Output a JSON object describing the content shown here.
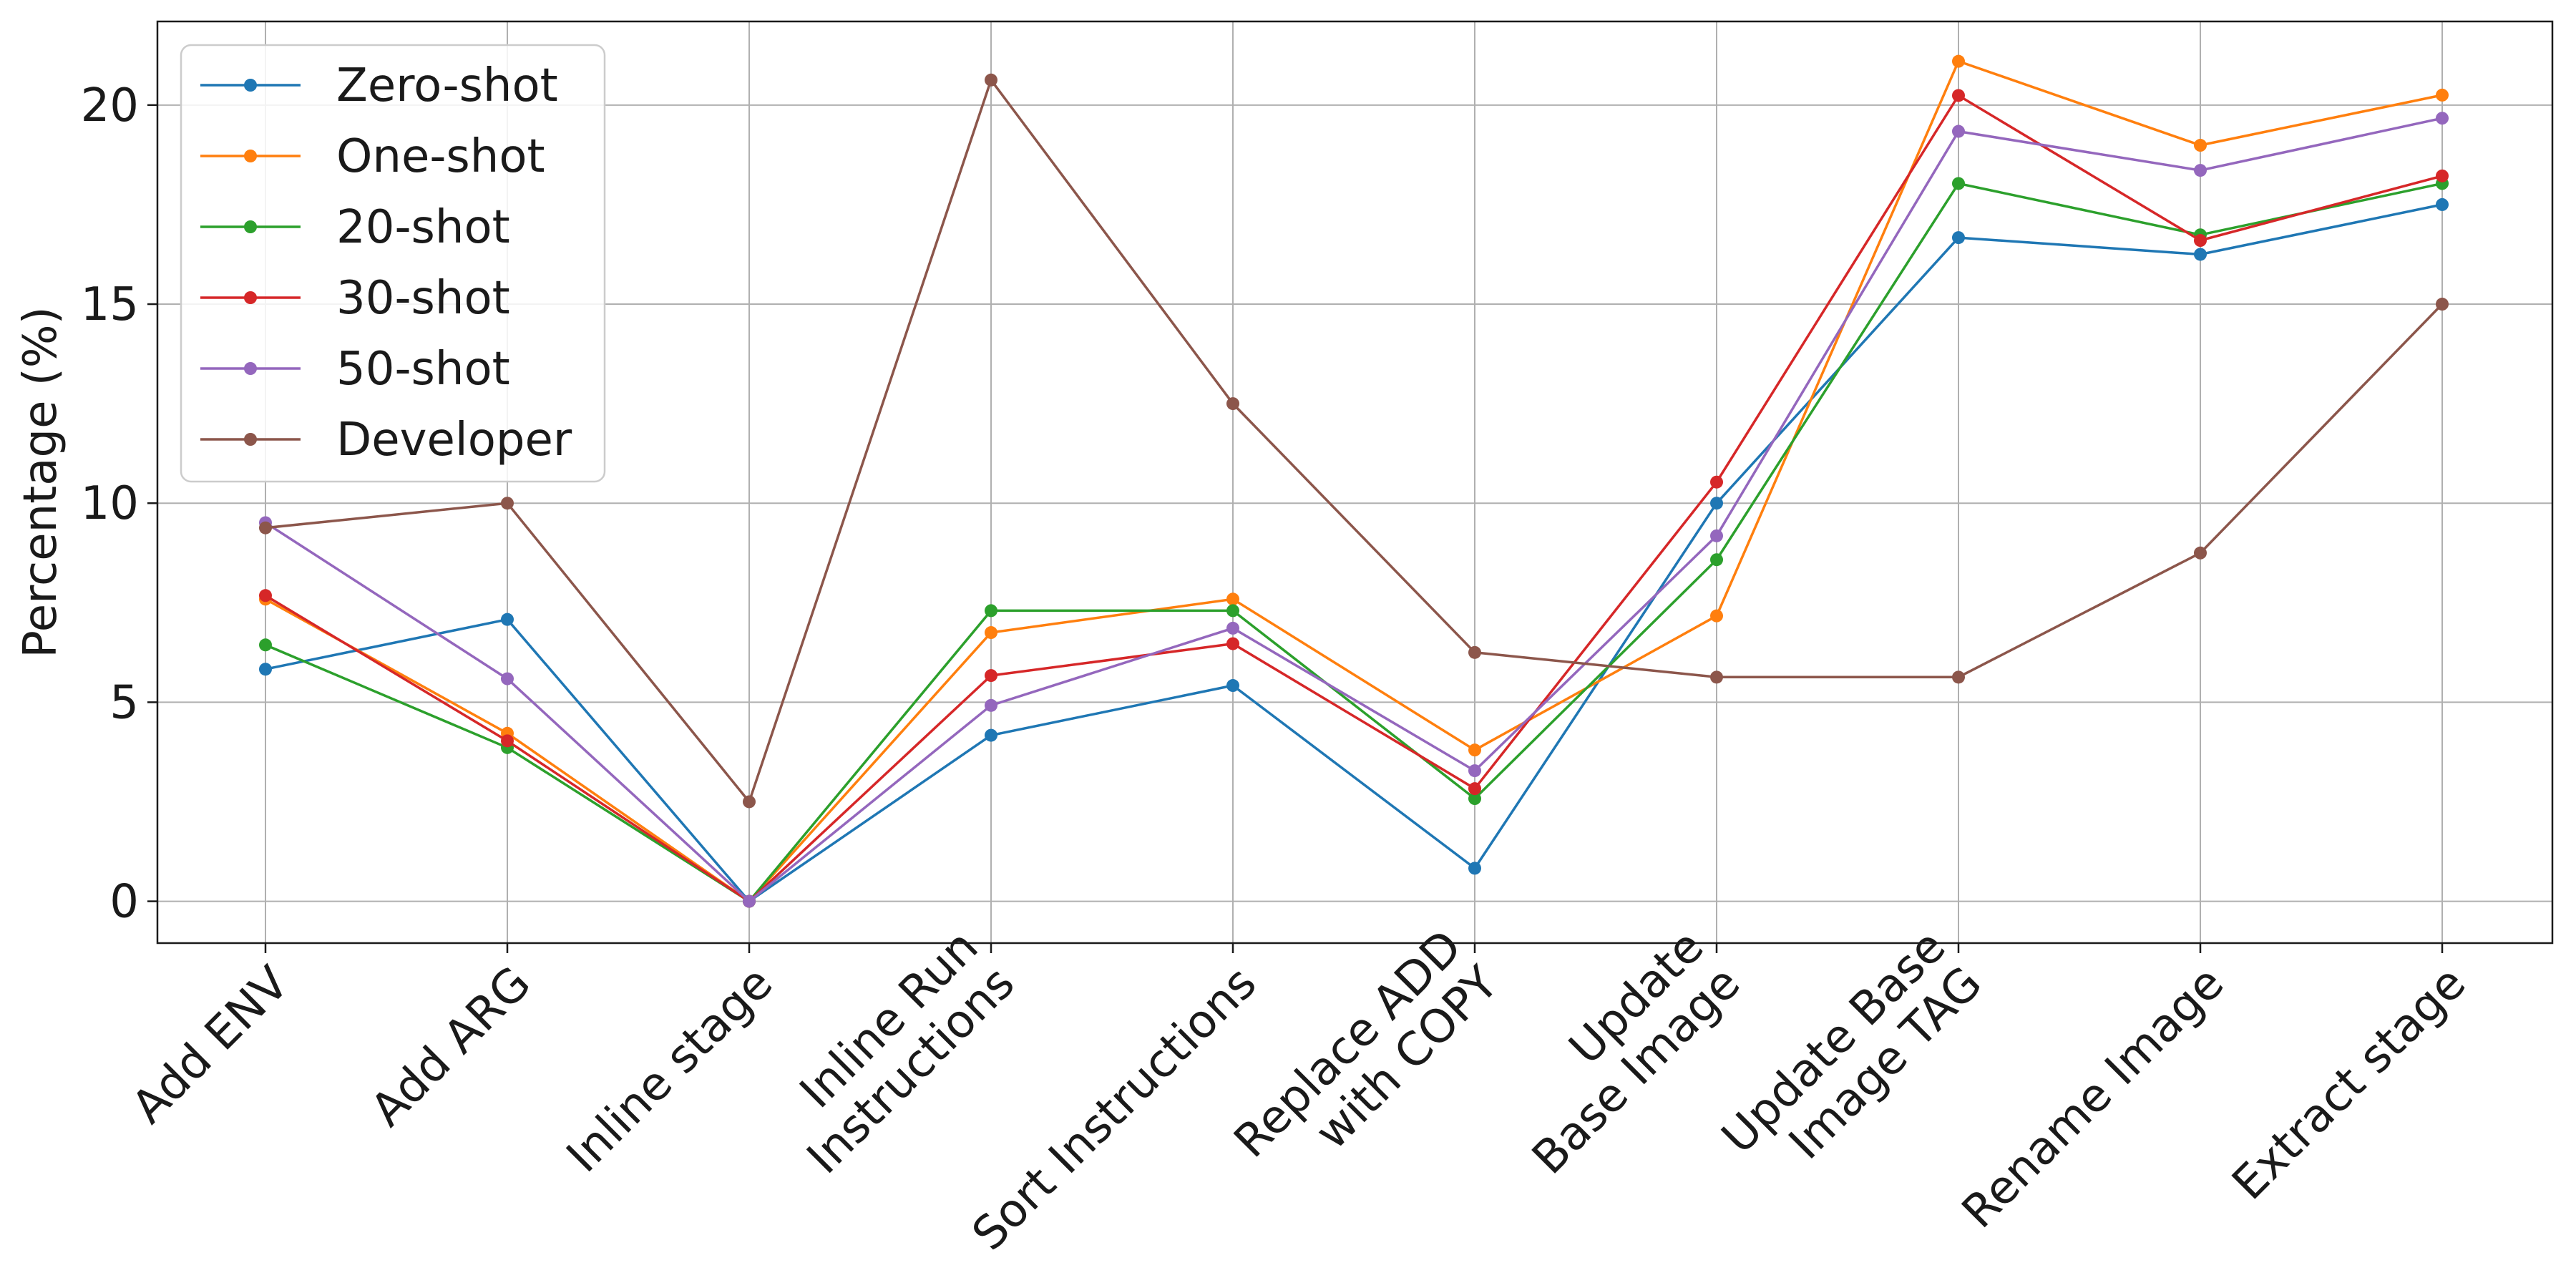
{
  "chart_data": {
    "type": "line",
    "title": "",
    "xlabel": "",
    "ylabel": "Percentage (%)",
    "ylim": [
      -1.05,
      22.1
    ],
    "yticks": [
      0,
      5,
      10,
      15,
      20
    ],
    "grid": true,
    "legend_position": "top-left",
    "categories": [
      [
        "Add ENV"
      ],
      [
        "Add ARG"
      ],
      [
        "Inline stage"
      ],
      [
        "Inline Run",
        "Instructions"
      ],
      [
        "Sort Instructions"
      ],
      [
        "Replace ADD",
        "with COPY"
      ],
      [
        "Update",
        "Base Image"
      ],
      [
        "Update Base",
        "Image TAG"
      ],
      [
        "Rename Image"
      ],
      [
        "Extract stage"
      ]
    ],
    "series": [
      {
        "name": "Zero-shot",
        "color": "#1f77b4",
        "values": [
          5.83,
          7.08,
          0.0,
          4.17,
          5.42,
          0.83,
          10.0,
          16.67,
          16.25,
          17.5
        ]
      },
      {
        "name": "One-shot",
        "color": "#ff7f0e",
        "values": [
          7.59,
          4.22,
          0.0,
          6.75,
          7.59,
          3.8,
          7.17,
          21.1,
          18.99,
          20.25
        ]
      },
      {
        "name": "20-shot",
        "color": "#2ca02c",
        "values": [
          6.44,
          3.86,
          0.0,
          7.3,
          7.3,
          2.58,
          8.58,
          18.03,
          16.74,
          18.03
        ]
      },
      {
        "name": "30-shot",
        "color": "#d62728",
        "values": [
          7.68,
          4.03,
          0.0,
          5.67,
          6.47,
          2.83,
          10.53,
          20.24,
          16.6,
          18.22
        ]
      },
      {
        "name": "50-shot",
        "color": "#9467bd",
        "values": [
          9.51,
          5.59,
          0.0,
          4.92,
          6.86,
          3.28,
          9.18,
          19.34,
          18.36,
          19.67
        ]
      },
      {
        "name": "Developer",
        "color": "#8c564b",
        "values": [
          9.38,
          10.0,
          2.5,
          20.63,
          12.5,
          6.25,
          5.63,
          5.63,
          8.75,
          15.0
        ]
      }
    ]
  }
}
